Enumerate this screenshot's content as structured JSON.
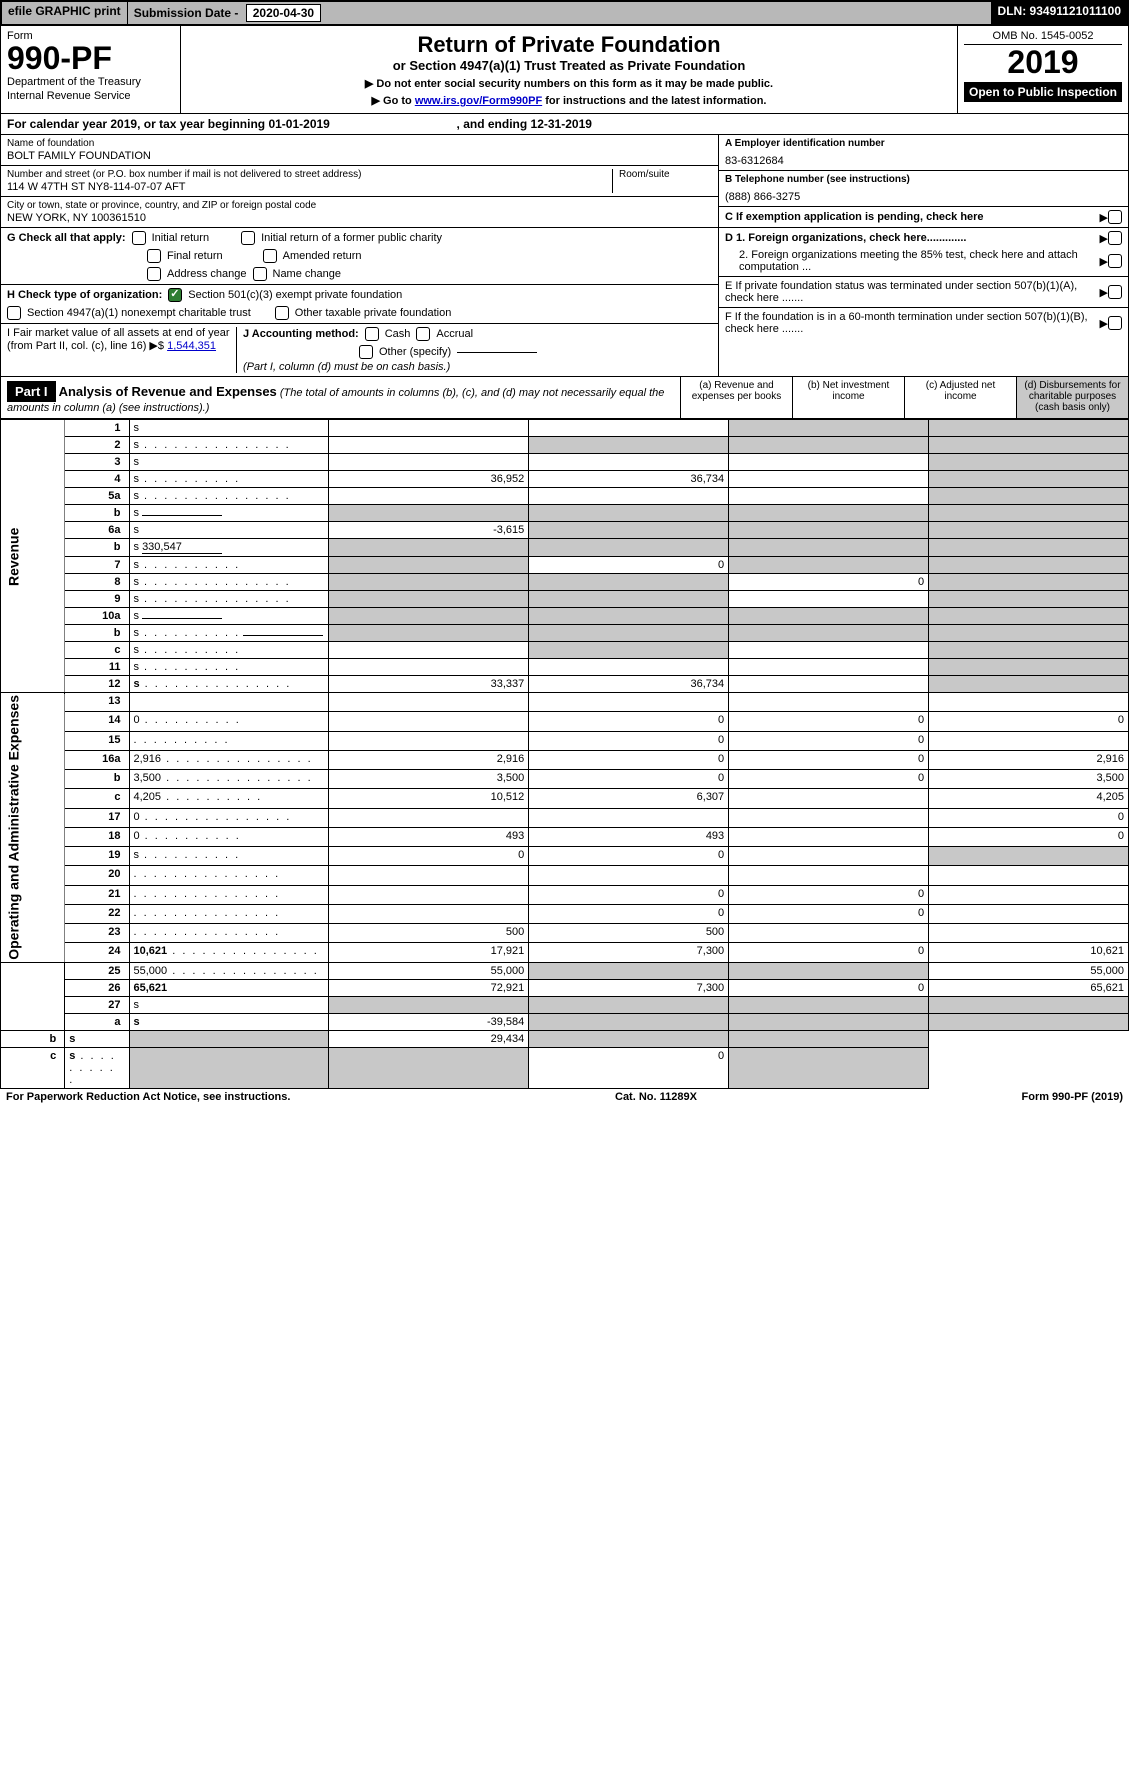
{
  "top": {
    "efile": "efile GRAPHIC print",
    "subdate_label": "Submission Date -",
    "subdate": "2020-04-30",
    "dln_label": "DLN:",
    "dln": "93491121011100"
  },
  "header": {
    "form_label": "Form",
    "form_num": "990-PF",
    "dept1": "Department of the Treasury",
    "dept2": "Internal Revenue Service",
    "title": "Return of Private Foundation",
    "sub1": "or Section 4947(a)(1) Trust Treated as Private Foundation",
    "sub2a": "▶ Do not enter social security numbers on this form as it may be made public.",
    "sub2b_pre": "▶ Go to ",
    "sub2b_link": "www.irs.gov/Form990PF",
    "sub2b_post": " for instructions and the latest information.",
    "omb": "OMB No. 1545-0052",
    "year": "2019",
    "open": "Open to Public Inspection"
  },
  "cal": {
    "text_a": "For calendar year 2019, or tax year beginning ",
    "begin": "01-01-2019",
    "text_b": " , and ending ",
    "end": "12-31-2019"
  },
  "info": {
    "name_label": "Name of foundation",
    "name": "BOLT FAMILY FOUNDATION",
    "addr_label": "Number and street (or P.O. box number if mail is not delivered to street address)",
    "room_label": "Room/suite",
    "addr": "114 W 47TH ST NY8-114-07-07 AFT",
    "city_label": "City or town, state or province, country, and ZIP or foreign postal code",
    "city": "NEW YORK, NY  100361510",
    "a_label": "A Employer identification number",
    "a_val": "83-6312684",
    "b_label": "B Telephone number (see instructions)",
    "b_val": "(888) 866-3275",
    "c_label": "C If exemption application is pending, check here",
    "d1": "D 1. Foreign organizations, check here.............",
    "d2": "2. Foreign organizations meeting the 85% test, check here and attach computation ...",
    "e": "E  If private foundation status was terminated under section 507(b)(1)(A), check here .......",
    "f": "F  If the foundation is in a 60-month termination under section 507(b)(1)(B), check here .......",
    "g_label": "G Check all that apply:",
    "g_opts": [
      "Initial return",
      "Initial return of a former public charity",
      "Final return",
      "Amended return",
      "Address change",
      "Name change"
    ],
    "h_label": "H Check type of organization:",
    "h_opt1": "Section 501(c)(3) exempt private foundation",
    "h_opt2": "Section 4947(a)(1) nonexempt charitable trust",
    "h_opt3": "Other taxable private foundation",
    "i_label": "I Fair market value of all assets at end of year (from Part II, col. (c), line 16)",
    "i_val": "1,544,351",
    "j_label": "J Accounting method:",
    "j_cash": "Cash",
    "j_accrual": "Accrual",
    "j_other": "Other (specify)",
    "j_note": "(Part I, column (d) must be on cash basis.)"
  },
  "part1": {
    "label": "Part I",
    "title": "Analysis of Revenue and Expenses",
    "note": "(The total of amounts in columns (b), (c), and (d) may not necessarily equal the amounts in column (a) (see instructions).)",
    "col_a": "(a)    Revenue and expenses per books",
    "col_b": "(b)  Net investment income",
    "col_c": "(c)  Adjusted net income",
    "col_d": "(d)  Disbursements for charitable purposes (cash basis only)"
  },
  "sides": {
    "revenue": "Revenue",
    "expenses": "Operating and Administrative Expenses"
  },
  "rows": [
    {
      "n": "1",
      "d": "s",
      "a": "",
      "b": "",
      "c": "s"
    },
    {
      "n": "2",
      "d": "s",
      "dots": true,
      "a": "",
      "b": "s",
      "c": "s",
      "bold_not": true
    },
    {
      "n": "3",
      "d": "s",
      "a": "",
      "b": "",
      "c": ""
    },
    {
      "n": "4",
      "d": "s",
      "dots": "short",
      "a": "36,952",
      "b": "36,734",
      "c": ""
    },
    {
      "n": "5a",
      "d": "s",
      "dots": true,
      "a": "",
      "b": "",
      "c": ""
    },
    {
      "n": "b",
      "d": "s",
      "line": true,
      "a": "s",
      "b": "s",
      "c": "s"
    },
    {
      "n": "6a",
      "d": "s",
      "a": "-3,615",
      "b": "s",
      "c": "s"
    },
    {
      "n": "b",
      "d": "s",
      "line": true,
      "lineval": "330,547",
      "a": "s",
      "b": "s",
      "c": "s"
    },
    {
      "n": "7",
      "d": "s",
      "dots": "short",
      "a": "s",
      "b": "0",
      "c": "s"
    },
    {
      "n": "8",
      "d": "s",
      "dots": true,
      "a": "s",
      "b": "s",
      "c": "0"
    },
    {
      "n": "9",
      "d": "s",
      "dots": true,
      "a": "s",
      "b": "s",
      "c": ""
    },
    {
      "n": "10a",
      "d": "s",
      "line": true,
      "a": "s",
      "b": "s",
      "c": "s"
    },
    {
      "n": "b",
      "d": "s",
      "dots": "short",
      "line": true,
      "a": "s",
      "b": "s",
      "c": "s"
    },
    {
      "n": "c",
      "d": "s",
      "dots": "short",
      "a": "",
      "b": "s",
      "c": ""
    },
    {
      "n": "11",
      "d": "s",
      "dots": "short",
      "a": "",
      "b": "",
      "c": ""
    },
    {
      "n": "12",
      "d": "s",
      "dots": true,
      "bold": true,
      "a": "33,337",
      "b": "36,734",
      "c": ""
    },
    {
      "n": "13",
      "d": "",
      "a": "",
      "b": "",
      "c": ""
    },
    {
      "n": "14",
      "d": "0",
      "dots": "short",
      "a": "",
      "b": "0",
      "c": "0"
    },
    {
      "n": "15",
      "d": "",
      "dots": "short",
      "a": "",
      "b": "0",
      "c": "0"
    },
    {
      "n": "16a",
      "d": "2,916",
      "dots": true,
      "a": "2,916",
      "b": "0",
      "c": "0"
    },
    {
      "n": "b",
      "d": "3,500",
      "dots": true,
      "a": "3,500",
      "b": "0",
      "c": "0"
    },
    {
      "n": "c",
      "d": "4,205",
      "dots": "short",
      "a": "10,512",
      "b": "6,307",
      "c": ""
    },
    {
      "n": "17",
      "d": "0",
      "dots": true,
      "a": "",
      "b": "",
      "c": ""
    },
    {
      "n": "18",
      "d": "0",
      "dots": "short",
      "a": "493",
      "b": "493",
      "c": ""
    },
    {
      "n": "19",
      "d": "s",
      "dots": "short",
      "a": "0",
      "b": "0",
      "c": ""
    },
    {
      "n": "20",
      "d": "",
      "dots": true,
      "a": "",
      "b": "",
      "c": ""
    },
    {
      "n": "21",
      "d": "",
      "dots": true,
      "a": "",
      "b": "0",
      "c": "0"
    },
    {
      "n": "22",
      "d": "",
      "dots": true,
      "a": "",
      "b": "0",
      "c": "0"
    },
    {
      "n": "23",
      "d": "",
      "dots": true,
      "a": "500",
      "b": "500",
      "c": ""
    },
    {
      "n": "24",
      "d": "10,621",
      "dots": true,
      "bold": true,
      "a": "17,921",
      "b": "7,300",
      "c": "0"
    },
    {
      "n": "25",
      "d": "55,000",
      "dots": true,
      "a": "55,000",
      "b": "s",
      "c": "s"
    },
    {
      "n": "26",
      "d": "65,621",
      "bold": true,
      "a": "72,921",
      "b": "7,300",
      "c": "0"
    },
    {
      "n": "27",
      "d": "s",
      "a": "s",
      "b": "s",
      "c": "s"
    },
    {
      "n": "a",
      "d": "s",
      "bold": true,
      "a": "-39,584",
      "b": "s",
      "c": "s"
    },
    {
      "n": "b",
      "d": "s",
      "bold": true,
      "a": "s",
      "b": "29,434",
      "c": "s"
    },
    {
      "n": "c",
      "d": "s",
      "dots": "short",
      "bold": true,
      "a": "s",
      "b": "s",
      "c": "0"
    }
  ],
  "footer": {
    "left": "For Paperwork Reduction Act Notice, see instructions.",
    "mid": "Cat. No. 11289X",
    "right": "Form 990-PF (2019)"
  }
}
